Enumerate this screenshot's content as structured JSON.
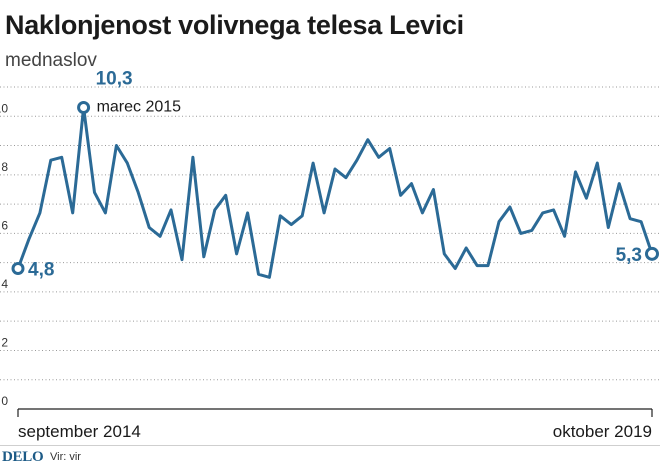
{
  "chart_data": {
    "type": "line",
    "title": "Naklonjenost volivnega telesa Levici",
    "subtitle": "mednaslov",
    "xlabel": "",
    "ylabel": "",
    "ylim": [
      0,
      11
    ],
    "yticks": [
      0,
      2,
      4,
      6,
      8,
      10
    ],
    "x_tick_labels": [
      "september 2014",
      "oktober 2019"
    ],
    "series": [
      {
        "name": "Naklonjenost",
        "color": "#2b6a96",
        "values": [
          4.8,
          5.8,
          6.7,
          8.5,
          8.6,
          6.7,
          10.3,
          7.4,
          6.7,
          9.0,
          8.4,
          7.4,
          6.2,
          5.9,
          6.8,
          5.1,
          8.6,
          5.2,
          6.8,
          7.3,
          5.3,
          6.7,
          4.6,
          4.5,
          6.6,
          6.3,
          6.6,
          8.4,
          6.7,
          8.2,
          7.9,
          8.5,
          9.2,
          8.6,
          8.9,
          7.3,
          7.7,
          6.7,
          7.5,
          5.3,
          4.8,
          5.5,
          4.9,
          4.9,
          6.4,
          6.9,
          6.0,
          6.1,
          6.7,
          6.8,
          5.9,
          8.1,
          7.2,
          8.4,
          6.2,
          7.7,
          6.5,
          6.4,
          5.3
        ]
      }
    ],
    "annotations": [
      {
        "label": "4,8",
        "point_index": 0
      },
      {
        "label": "10,3",
        "note": "marec 2015",
        "point_index": 6
      },
      {
        "label": "5,3",
        "point_index": 58
      }
    ]
  },
  "footer": {
    "logo": "DELO",
    "source_prefix": "Vir:",
    "source_value": "vir"
  }
}
